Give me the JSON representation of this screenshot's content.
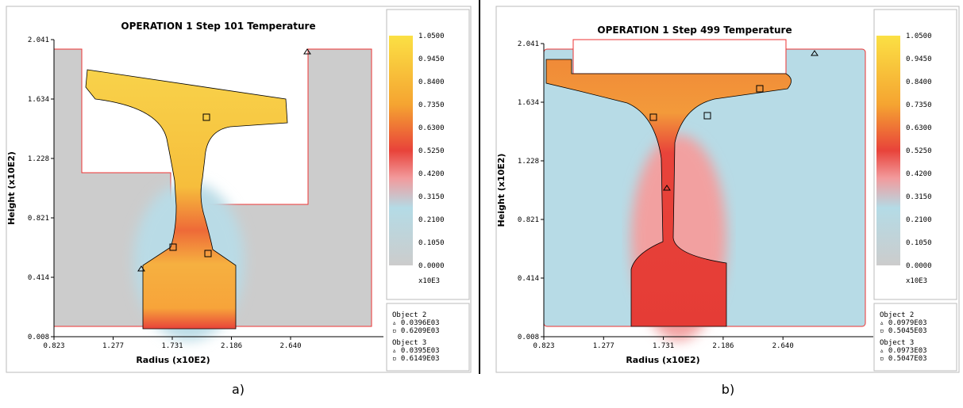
{
  "panels": [
    {
      "title": "OPERATION 1 Step 101  Temperature",
      "y_label": "Height (x10E2)",
      "x_label": "Radius (x10E2)",
      "y_ticks": [
        "2.041",
        "1.634",
        "1.228",
        "0.821",
        "0.414",
        "0.008"
      ],
      "x_ticks": [
        "0.823",
        "1.277",
        "1.731",
        "2.186",
        "2.640"
      ],
      "colorbar": {
        "labels": [
          "1.0500",
          "0.9450",
          "0.8400",
          "0.7350",
          "0.6300",
          "0.5250",
          "0.4200",
          "0.3150",
          "0.2100",
          "0.1050",
          "0.0000"
        ],
        "unit": "x10E3"
      },
      "objects": [
        "Object  2",
        "▵ 0.0396E03",
        "▫ 0.6209E03",
        "Object  3",
        "▵ 0.0395E03",
        "▫ 0.6149E03"
      ],
      "caption": "a)"
    },
    {
      "title": "OPERATION 1 Step 499  Temperature",
      "y_label": "Height (x10E2)",
      "x_label": "Radius (x10E2)",
      "y_ticks": [
        "2.041",
        "1.634",
        "1.228",
        "0.821",
        "0.414",
        "0.008"
      ],
      "x_ticks": [
        "0.823",
        "1.277",
        "1.731",
        "2.186",
        "2.640"
      ],
      "colorbar": {
        "labels": [
          "1.0500",
          "0.9450",
          "0.8400",
          "0.7350",
          "0.6300",
          "0.5250",
          "0.4200",
          "0.3150",
          "0.2100",
          "0.1050",
          "0.0000"
        ],
        "unit": "x10E3"
      },
      "objects": [
        "Object  2",
        "▵ 0.0979E03",
        "▫ 0.5045E03",
        "Object  3",
        "▵ 0.0973E03",
        "▫ 0.5047E03"
      ],
      "caption": "b)"
    }
  ]
}
